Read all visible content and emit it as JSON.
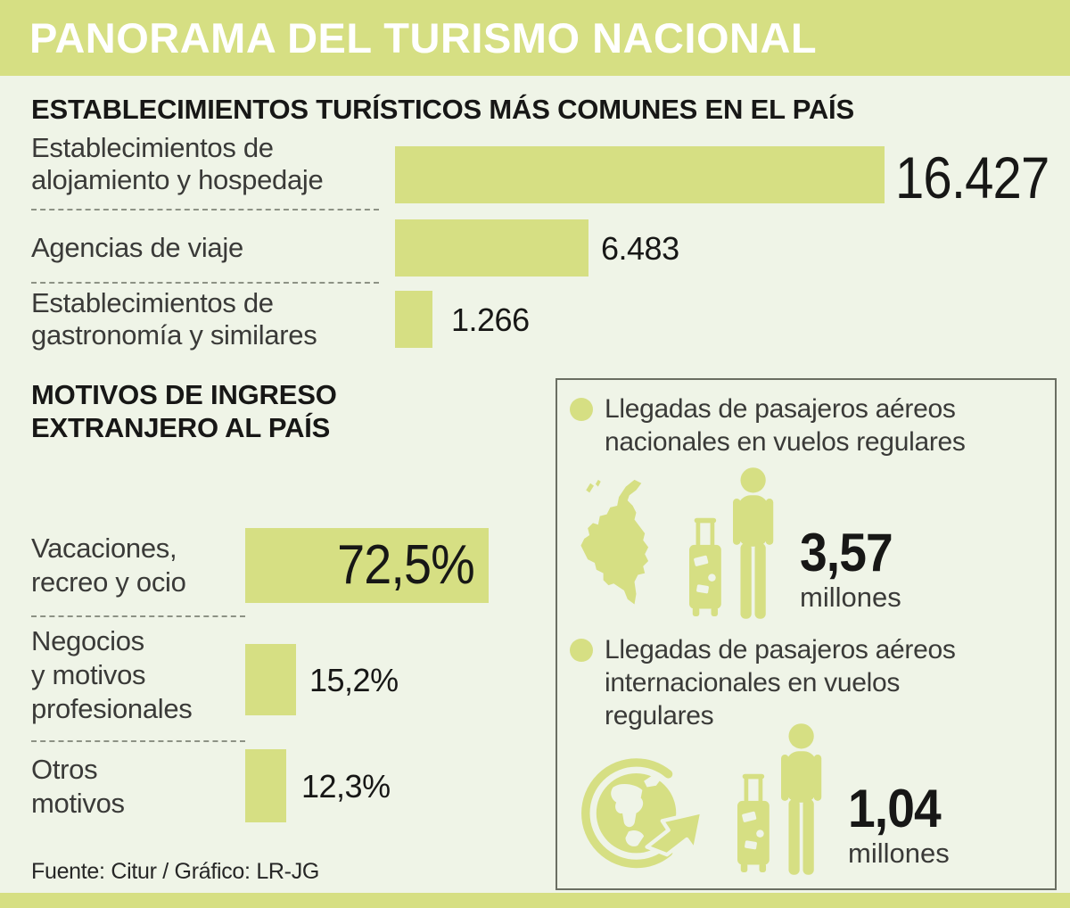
{
  "page": {
    "title": "PANORAMA DEL TURISMO NACIONAL",
    "footer": "Fuente: Citur / Gráfico: LR-JG",
    "colors": {
      "accent": "#d6df83",
      "background": "#eff4e7",
      "header_text": "#ffffff",
      "text": "#171716",
      "label": "#3a3a38",
      "border": "#6a6e62",
      "dash": "#8d9285"
    }
  },
  "chart_data": [
    {
      "type": "bar",
      "title": "ESTABLECIMIENTOS TURÍSTICOS MÁS COMUNES EN EL PAÍS",
      "categories": [
        "Establecimientos de alojamiento y hospedaje",
        "Agencias de viaje",
        "Establecimientos de gastronomía y similares"
      ],
      "values": [
        16427,
        6483,
        1266
      ],
      "max": 16427,
      "legend_position": "none",
      "rows": [
        {
          "label": "Establecimientos de\nalojamiento y hospedaje",
          "value": 16427,
          "value_label": "16.427"
        },
        {
          "label": "Agencias de viaje",
          "value": 6483,
          "value_label": "6.483"
        },
        {
          "label": "Establecimientos de\ngastronomía y similares",
          "value": 1266,
          "value_label": "1.266"
        }
      ]
    },
    {
      "type": "bar",
      "title": "MOTIVOS DE INGRESO\nEXTRANJERO AL PAÍS",
      "categories": [
        "Vacaciones, recreo y ocio",
        "Negocios y motivos profesionales",
        "Otros motivos"
      ],
      "values": [
        72.5,
        15.2,
        12.3
      ],
      "unit": "%",
      "max": 72.5,
      "legend_position": "none",
      "rows": [
        {
          "label": "Vacaciones,\nrecreo y ocio",
          "value": 72.5,
          "value_label": "72,5%"
        },
        {
          "label": "Negocios\ny motivos\nprofesionales",
          "value": 15.2,
          "value_label": "15,2%"
        },
        {
          "label": "Otros\nmotivos",
          "value": 12.3,
          "value_label": "12,3%"
        }
      ]
    }
  ],
  "arrivals": {
    "items": [
      {
        "icon": "colombia-map",
        "label": "Llegadas de pasajeros aéreos\nnacionales en vuelos regulares",
        "value": "3,57",
        "unit": "millones"
      },
      {
        "icon": "globe-arrow",
        "label": "Llegadas de pasajeros aéreos\ninternacionales en vuelos\nregulares",
        "value": "1,04",
        "unit": "millones"
      }
    ]
  }
}
